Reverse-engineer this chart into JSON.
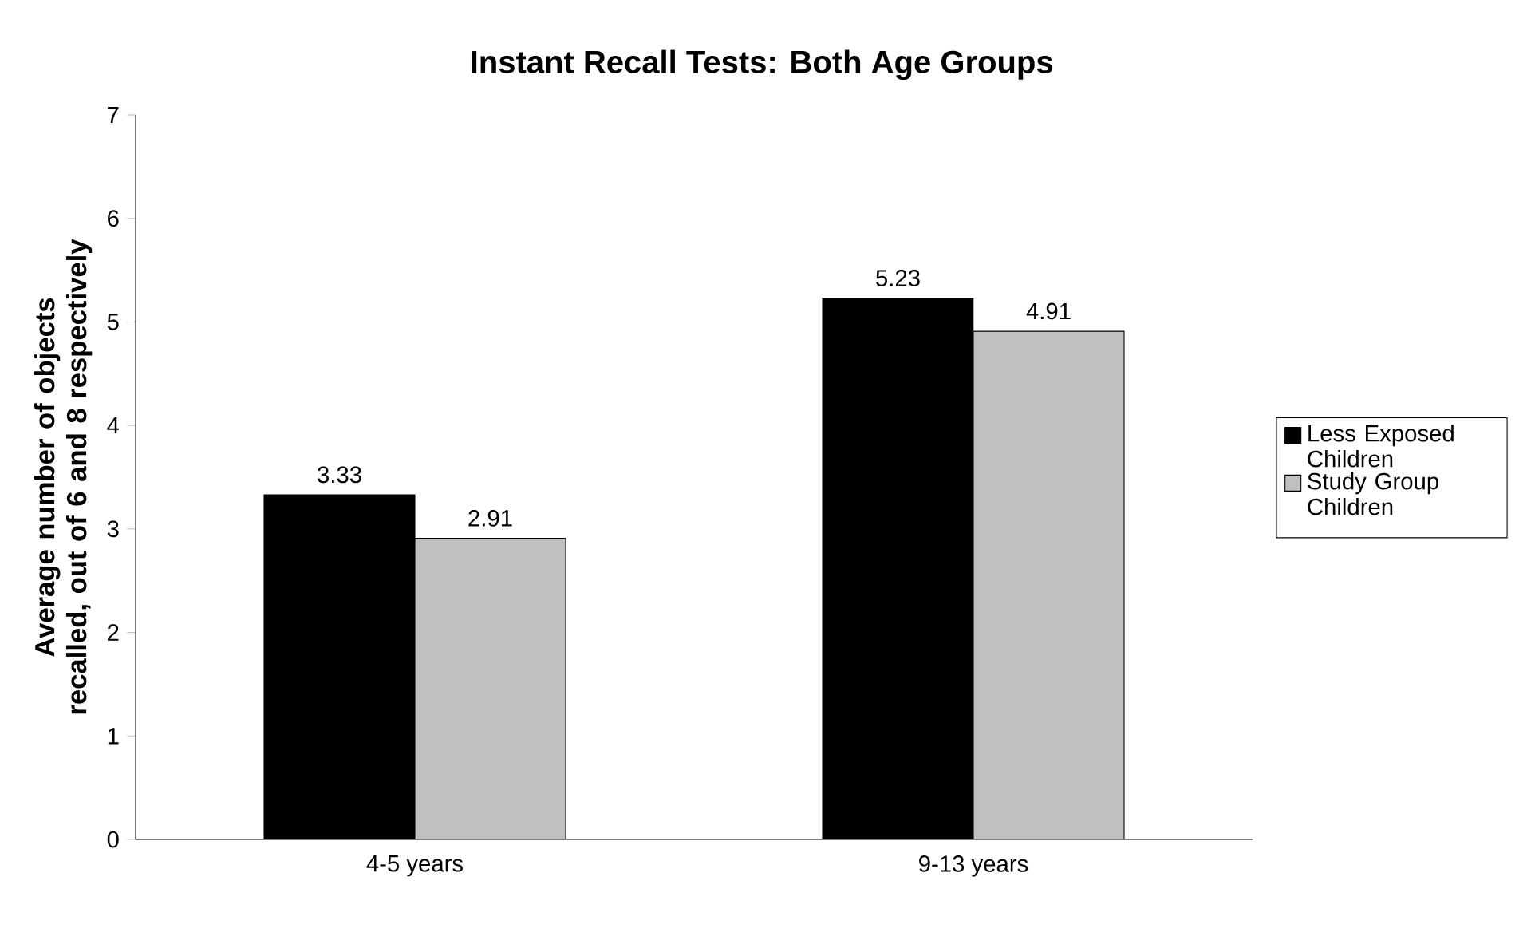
{
  "chart_data": {
    "type": "bar",
    "title": "Instant Recall Tests: Both Age Groups",
    "ylabel": "Average number of objects recalled, out of 6 and 8 respectively",
    "categories": [
      "4-5 years",
      "9-13 years"
    ],
    "series": [
      {
        "name": "Less Exposed Children",
        "color": "#000000",
        "values": [
          3.33,
          5.23
        ]
      },
      {
        "name": "Study Group Children",
        "color": "#c0c0c0",
        "values": [
          2.91,
          4.91
        ]
      }
    ],
    "ylim": [
      0,
      7
    ],
    "yticks": [
      0,
      1,
      2,
      3,
      4,
      5,
      6,
      7
    ],
    "grid": false,
    "legend": "right",
    "data_labels": true
  }
}
